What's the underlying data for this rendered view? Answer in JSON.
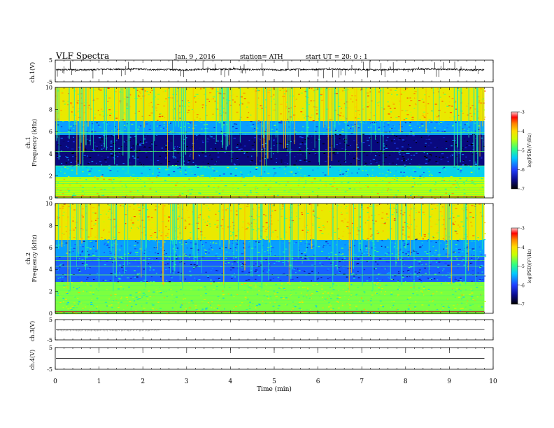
{
  "header": {
    "title": "VLF  Spectra",
    "date": "Jan.  9  ,  2016",
    "station": "station= ATH",
    "start": "start  UT  =    20: 0  : 1"
  },
  "colors": {
    "trace": "#000000",
    "colormap": [
      "#0a0a8c",
      "#1f3dff",
      "#00c8ff",
      "#30ff80",
      "#c8ff00",
      "#ffdc00",
      "#ff8000",
      "#ff0000",
      "#ffb8b8"
    ]
  },
  "chart_data": [
    {
      "type": "line",
      "panel": "ch1-waveform",
      "ylabel": "ch.1(V)",
      "ylim": [
        -5,
        5
      ],
      "y_ticks": [
        "5",
        "-5"
      ],
      "x_ticks": [
        "0",
        "1",
        "2",
        "3",
        "4",
        "5",
        "6",
        "7",
        "8",
        "9",
        "10"
      ],
      "xlim": [
        0,
        10
      ],
      "description_points": {
        "mean_level_V": 0.7,
        "noise_amplitude_V": 0.4,
        "data_end_min": 9.8
      }
    },
    {
      "type": "heatmap",
      "panel": "ch1-spectrogram",
      "ylabel": "ch.1\nFrequency (kHz)",
      "ylim": [
        0,
        10
      ],
      "y_ticks": [
        "0",
        "2",
        "4",
        "6",
        "8",
        "10"
      ],
      "xlim": [
        0,
        10
      ],
      "data_end_min": 9.8,
      "colorbar": {
        "label": "log(PSD)(V²/Hz)",
        "range": [
          -7,
          -3
        ],
        "ticks": [
          "-3",
          "-4",
          "-5",
          "-6",
          "-7"
        ]
      },
      "bands": [
        {
          "f_low": 0,
          "f_high": 2,
          "level": -4.8
        },
        {
          "f_low": 2,
          "f_high": 3,
          "level": -5.6
        },
        {
          "f_low": 3,
          "f_high": 5.8,
          "level": -6.6
        },
        {
          "f_low": 5.8,
          "f_high": 7,
          "level": -5.8
        },
        {
          "f_low": 7,
          "f_high": 10,
          "level": -4.5
        }
      ],
      "persistent_lines_kHz": [
        0.3,
        0.5,
        0.7,
        0.9,
        1.3,
        1.5,
        1.8,
        2.9,
        4.2,
        5.9
      ]
    },
    {
      "type": "heatmap",
      "panel": "ch2-spectrogram",
      "ylabel": "ch.2\nFrequency (kHz)",
      "ylim": [
        0,
        10
      ],
      "y_ticks": [
        "0",
        "2",
        "4",
        "6",
        "8",
        "10"
      ],
      "xlim": [
        0,
        10
      ],
      "data_end_min": 9.8,
      "colorbar": {
        "label": "log(PSD)(V²/Hz)",
        "range": [
          -7,
          -3
        ],
        "ticks": [
          "-3",
          "-4",
          "-5",
          "-6",
          "-7"
        ]
      },
      "bands": [
        {
          "f_low": 0,
          "f_high": 2.9,
          "level": -5.0
        },
        {
          "f_low": 2.9,
          "f_high": 5.2,
          "level": -6.0
        },
        {
          "f_low": 5.2,
          "f_high": 6.8,
          "level": -5.8
        },
        {
          "f_low": 6.8,
          "f_high": 10,
          "level": -4.5
        }
      ],
      "persistent_lines_kHz": [
        0.3,
        0.9,
        1.2,
        1.6,
        2.1,
        2.5,
        3.5,
        4.3,
        4.8,
        5.2
      ]
    },
    {
      "type": "line",
      "panel": "ch3-waveform",
      "ylabel": "ch.3(V)",
      "ylim": [
        -5,
        5
      ],
      "y_ticks": [
        "5",
        "-5"
      ],
      "xlim": [
        0,
        10
      ],
      "description_points": {
        "mean_level_V": 0,
        "data_end_min": 9.8
      }
    },
    {
      "type": "line",
      "panel": "ch4-waveform",
      "ylabel": "ch.4(V)",
      "ylim": [
        -5,
        5
      ],
      "y_ticks": [
        "5",
        "-5"
      ],
      "x_ticks": [
        "0",
        "1",
        "2",
        "3",
        "4",
        "5",
        "6",
        "7",
        "8",
        "9",
        "10"
      ],
      "xlim": [
        0,
        10
      ],
      "xlabel": "Time  (min)",
      "description_points": {
        "mean_level_V": 0,
        "data_end_min": 9.8
      }
    }
  ]
}
